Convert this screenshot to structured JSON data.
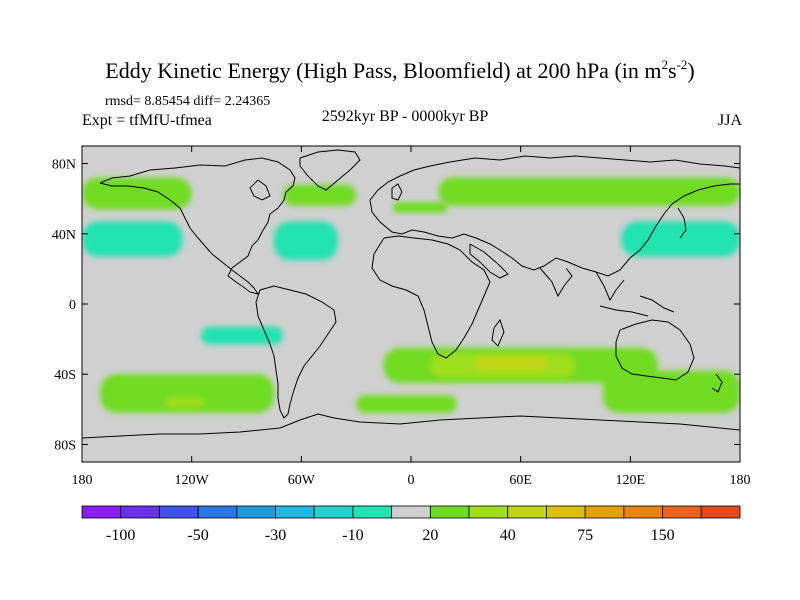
{
  "title": {
    "text": "Eddy Kinetic Energy (High Pass, Bloomfield) at 200 hPa (in m",
    "unit_m_exp": "2",
    "unit_s": "s",
    "unit_s_exp": "-2",
    "close": ")"
  },
  "stats": "rmsd= 8.85454  diff= 2.24365",
  "expt": "Expt = tfMfU-tfmea",
  "period": "2592kyr BP - 0000kyr BP",
  "season": "JJA",
  "lat_ticks": [
    {
      "lat": 80,
      "label": "80N"
    },
    {
      "lat": 40,
      "label": "40N"
    },
    {
      "lat": 0,
      "label": "0"
    },
    {
      "lat": -40,
      "label": "40S"
    },
    {
      "lat": -80,
      "label": "80S"
    }
  ],
  "lon_ticks": [
    {
      "lon": -180,
      "label": "180"
    },
    {
      "lon": -120,
      "label": "120W"
    },
    {
      "lon": -60,
      "label": "60W"
    },
    {
      "lon": 0,
      "label": "0"
    },
    {
      "lon": 60,
      "label": "60E"
    },
    {
      "lon": 120,
      "label": "120E"
    },
    {
      "lon": 180,
      "label": "180"
    }
  ],
  "colorbar": {
    "colors": [
      "#8a1ef0",
      "#6a30e8",
      "#3f52ee",
      "#2a78e6",
      "#1f9ce0",
      "#22b8e0",
      "#22d3cf",
      "#22e2b0",
      "#d0d0d0",
      "#6fdc24",
      "#9ede1a",
      "#c2d414",
      "#dcc20c",
      "#e4a20a",
      "#e88410",
      "#e8641a",
      "#e84820"
    ],
    "labels": [
      {
        "after": 1,
        "text": "-100"
      },
      {
        "after": 3,
        "text": "-50"
      },
      {
        "after": 5,
        "text": "-30"
      },
      {
        "after": 7,
        "text": "-10"
      },
      {
        "after": 9,
        "text": "20"
      },
      {
        "after": 11,
        "text": "40"
      },
      {
        "after": 13,
        "text": "75"
      },
      {
        "after": 15,
        "text": "150"
      }
    ]
  },
  "field_colors": {
    "background": "#d0d0d0",
    "cyan": "#22e2b0",
    "green": "#6fdc24",
    "yellow_green": "#9ede1a",
    "yellow": "#c2d414"
  },
  "anomaly_regions": [
    {
      "name": "n-pacific-green-band",
      "color": "green",
      "lon": -180,
      "lat": 72,
      "lon_w": 60,
      "lat_h": 18
    },
    {
      "name": "n-atlantic-green-band",
      "color": "green",
      "lon": -70,
      "lat": 68,
      "lon_w": 40,
      "lat_h": 12
    },
    {
      "name": "n-europe-green-strip",
      "color": "green",
      "lon": -10,
      "lat": 58,
      "lon_w": 30,
      "lat_h": 6
    },
    {
      "name": "n-siberia-green-band",
      "color": "green",
      "lon": 15,
      "lat": 72,
      "lon_w": 165,
      "lat_h": 16
    },
    {
      "name": "n-pacific-cyan-band",
      "color": "cyan",
      "lon": -180,
      "lat": 47,
      "lon_w": 55,
      "lat_h": 20
    },
    {
      "name": "n-atlantic-cyan-blob",
      "color": "cyan",
      "lon": -75,
      "lat": 47,
      "lon_w": 35,
      "lat_h": 22
    },
    {
      "name": "nw-pacific-cyan-band",
      "color": "cyan",
      "lon": 115,
      "lat": 47,
      "lon_w": 65,
      "lat_h": 20
    },
    {
      "name": "s-pacific-cyan-blob",
      "color": "cyan",
      "lon": -115,
      "lat": -13,
      "lon_w": 45,
      "lat_h": 10
    },
    {
      "name": "s-indian-green-band",
      "color": "green",
      "lon": -15,
      "lat": -25,
      "lon_w": 150,
      "lat_h": 20
    },
    {
      "name": "s-indian-yellow-green",
      "color": "yellow_green",
      "lon": 10,
      "lat": -28,
      "lon_w": 80,
      "lat_h": 14
    },
    {
      "name": "s-indian-yellow-core",
      "color": "yellow",
      "lon": 35,
      "lat": -30,
      "lon_w": 40,
      "lat_h": 8
    },
    {
      "name": "s-atlantic-green-blob",
      "color": "green",
      "lon": -30,
      "lat": -52,
      "lon_w": 55,
      "lat_h": 10
    },
    {
      "name": "s-pacific-green-blob",
      "color": "green",
      "lon": -170,
      "lat": -40,
      "lon_w": 95,
      "lat_h": 22
    },
    {
      "name": "s-pacific-yellow-green-core",
      "color": "yellow_green",
      "lon": -135,
      "lat": -53,
      "lon_w": 22,
      "lat_h": 6
    },
    {
      "name": "sw-pacific-green-blob",
      "color": "green",
      "lon": 105,
      "lat": -38,
      "lon_w": 75,
      "lat_h": 24
    }
  ]
}
